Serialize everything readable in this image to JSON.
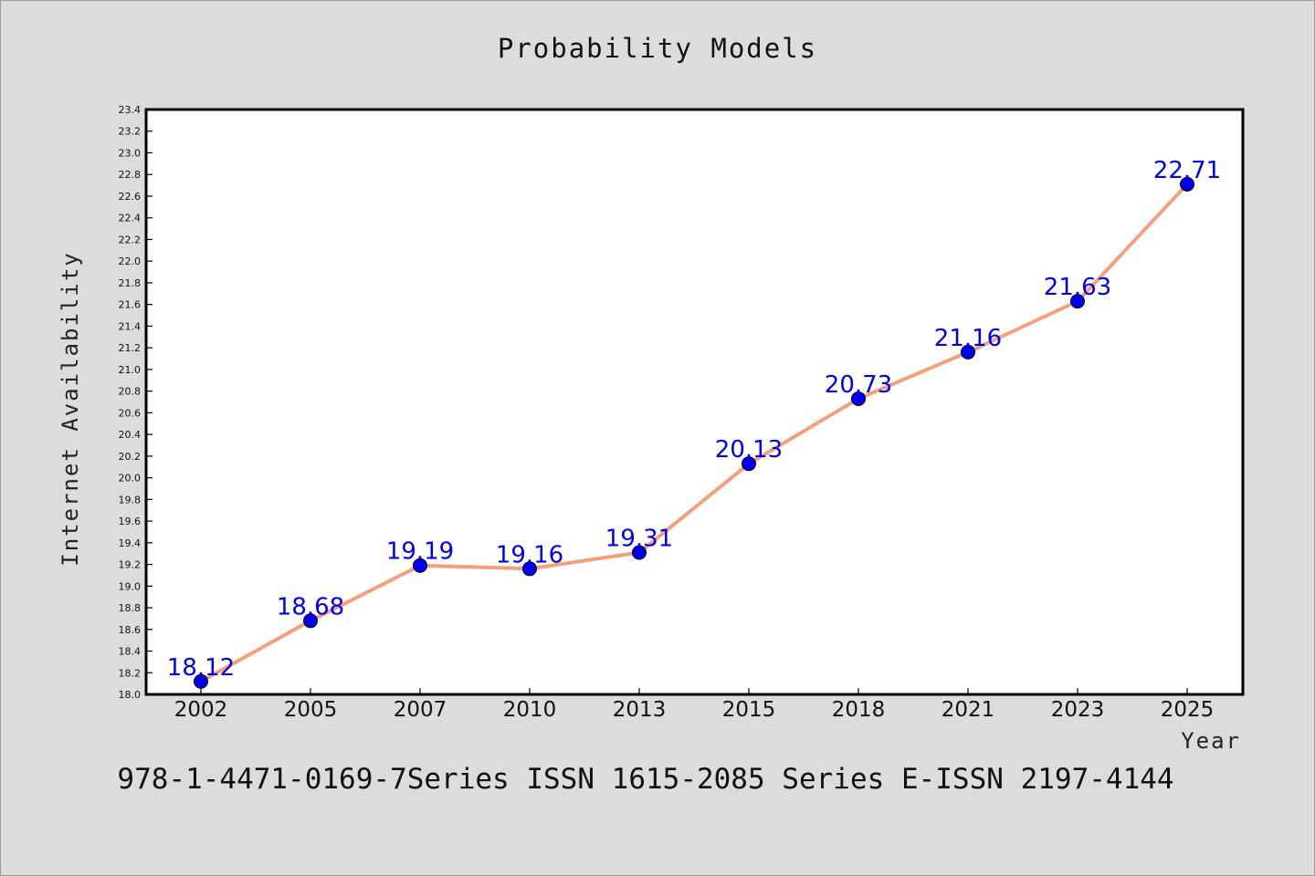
{
  "chart_data": {
    "type": "line",
    "title": "Probability Models",
    "xlabel": "Year",
    "ylabel": "Internet Availability",
    "categories": [
      "2002",
      "2005",
      "2007",
      "2010",
      "2013",
      "2015",
      "2018",
      "2021",
      "2023",
      "2025"
    ],
    "series": [
      {
        "values": [
          18.12,
          18.68,
          19.19,
          19.16,
          19.31,
          20.13,
          20.73,
          21.16,
          21.63,
          22.71
        ],
        "line_color": "#f4a07a",
        "marker_color": "#0000ee"
      }
    ],
    "data_labels": [
      "18.12",
      "18.68",
      "19.19",
      "19.16",
      "19.31",
      "20.13",
      "20.73",
      "21.16",
      "21.63",
      "22.71"
    ],
    "ylim": [
      18.0,
      23.4
    ],
    "yticks": [
      "18.0",
      "18.2",
      "18.4",
      "18.6",
      "18.8",
      "19.0",
      "19.2",
      "19.4",
      "19.6",
      "19.8",
      "20.0",
      "20.2",
      "20.4",
      "20.6",
      "20.8",
      "21.0",
      "21.2",
      "21.4",
      "21.6",
      "21.8",
      "22.0",
      "22.2",
      "22.4",
      "22.6",
      "22.8",
      "23.0",
      "23.2",
      "23.4"
    ],
    "grid": false,
    "legend": "none"
  },
  "footer": "978-1-4471-0169-7Series ISSN 1615-2085 Series E-ISSN 2197-4144",
  "colors": {
    "background": "#dcdcdc",
    "plot_background": "#ffffff",
    "line": "#f4a07a",
    "marker": "#0000ee",
    "data_label": "#0000ee"
  }
}
